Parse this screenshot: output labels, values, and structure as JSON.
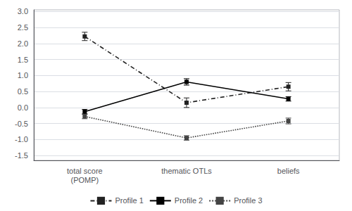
{
  "chart_data": {
    "type": "line",
    "categories": [
      "total score\n(POMP)",
      "thematic OTLs",
      "beliefs"
    ],
    "series": [
      {
        "name": "Profile 1",
        "color": "#222222",
        "line_style": "dashdot",
        "marker": "square",
        "values": [
          2.22,
          0.15,
          0.65
        ],
        "errors": [
          0.13,
          0.15,
          0.13
        ]
      },
      {
        "name": "Profile 2",
        "color": "#000000",
        "line_style": "solid",
        "marker": "square",
        "values": [
          -0.13,
          0.8,
          0.27
        ],
        "errors": [
          0.07,
          0.1,
          0.07
        ]
      },
      {
        "name": "Profile 3",
        "color": "#444444",
        "line_style": "dotted",
        "marker": "square",
        "values": [
          -0.28,
          -0.95,
          -0.42
        ],
        "errors": [
          0.07,
          0.07,
          0.09
        ]
      }
    ],
    "ylim": [
      -1.65,
      3.05
    ],
    "yticks": [
      -1.5,
      {
        "value": -1.0,
        "label": "-1.0"
      },
      -0.5,
      {
        "value": 0.0,
        "label": "0.0"
      },
      0.5,
      {
        "value": 1.0,
        "label": "1.0"
      },
      1.5,
      {
        "value": 2.0,
        "label": "2.0"
      },
      2.5,
      {
        "value": 3.0,
        "label": "3.0"
      }
    ],
    "grid": true,
    "legend": "bottom"
  }
}
